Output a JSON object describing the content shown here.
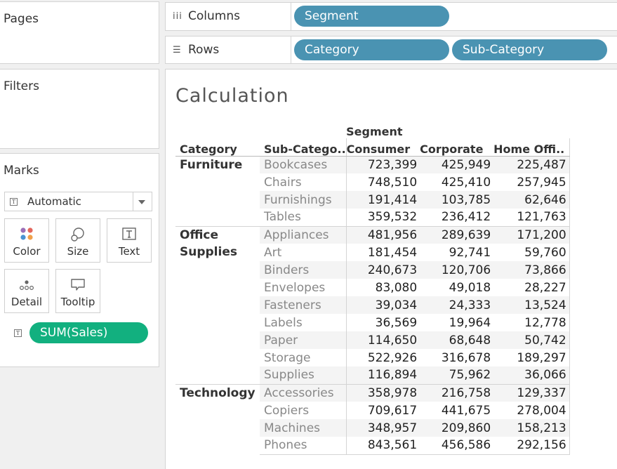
{
  "panels": {
    "pages_title": "Pages",
    "filters_title": "Filters",
    "marks_title": "Marks"
  },
  "marks": {
    "mark_type": "Automatic",
    "cards": [
      {
        "label": "Color",
        "icon": "color-dots-icon"
      },
      {
        "label": "Size",
        "icon": "size-circles-icon"
      },
      {
        "label": "Text",
        "icon": "text-t-icon"
      },
      {
        "label": "Detail",
        "icon": "detail-dots-icon"
      },
      {
        "label": "Tooltip",
        "icon": "tooltip-bubble-icon"
      }
    ],
    "measure_pill": "SUM(Sales)"
  },
  "shelves": {
    "columns_label": "Columns",
    "columns_pills": [
      "Segment"
    ],
    "rows_label": "Rows",
    "rows_pills": [
      "Category",
      "Sub-Category"
    ]
  },
  "view": {
    "title": "Calculation",
    "segment_header": "Segment",
    "row_headers": [
      "Category",
      "Sub-Catego.."
    ],
    "column_headers": [
      "Consumer",
      "Corporate",
      "Home Offi.."
    ],
    "groups": [
      {
        "category": "Furniture",
        "rows": [
          {
            "sub": "Bookcases",
            "values": [
              "723,399",
              "425,949",
              "225,487"
            ]
          },
          {
            "sub": "Chairs",
            "values": [
              "748,510",
              "425,410",
              "257,945"
            ]
          },
          {
            "sub": "Furnishings",
            "values": [
              "191,414",
              "103,785",
              "62,646"
            ]
          },
          {
            "sub": "Tables",
            "values": [
              "359,532",
              "236,412",
              "121,763"
            ]
          }
        ]
      },
      {
        "category": "Office Supplies",
        "rows": [
          {
            "sub": "Appliances",
            "values": [
              "481,956",
              "289,639",
              "171,200"
            ]
          },
          {
            "sub": "Art",
            "values": [
              "181,454",
              "92,741",
              "59,760"
            ]
          },
          {
            "sub": "Binders",
            "values": [
              "240,673",
              "120,706",
              "73,866"
            ]
          },
          {
            "sub": "Envelopes",
            "values": [
              "83,080",
              "49,018",
              "28,227"
            ]
          },
          {
            "sub": "Fasteners",
            "values": [
              "39,034",
              "24,333",
              "13,524"
            ]
          },
          {
            "sub": "Labels",
            "values": [
              "36,569",
              "19,964",
              "12,778"
            ]
          },
          {
            "sub": "Paper",
            "values": [
              "114,650",
              "68,648",
              "50,742"
            ]
          },
          {
            "sub": "Storage",
            "values": [
              "522,926",
              "316,678",
              "189,297"
            ]
          },
          {
            "sub": "Supplies",
            "values": [
              "116,894",
              "75,962",
              "36,066"
            ]
          }
        ]
      },
      {
        "category": "Technology",
        "rows": [
          {
            "sub": "Accessories",
            "values": [
              "358,978",
              "216,758",
              "129,337"
            ]
          },
          {
            "sub": "Copiers",
            "values": [
              "709,617",
              "441,675",
              "278,004"
            ]
          },
          {
            "sub": "Machines",
            "values": [
              "348,957",
              "209,860",
              "158,213"
            ]
          },
          {
            "sub": "Phones",
            "values": [
              "843,561",
              "456,586",
              "292,156"
            ]
          }
        ]
      }
    ]
  },
  "colors": {
    "dimension_pill": "#4a93b2",
    "measure_pill": "#12b07f",
    "band": "#f4f4f4"
  }
}
